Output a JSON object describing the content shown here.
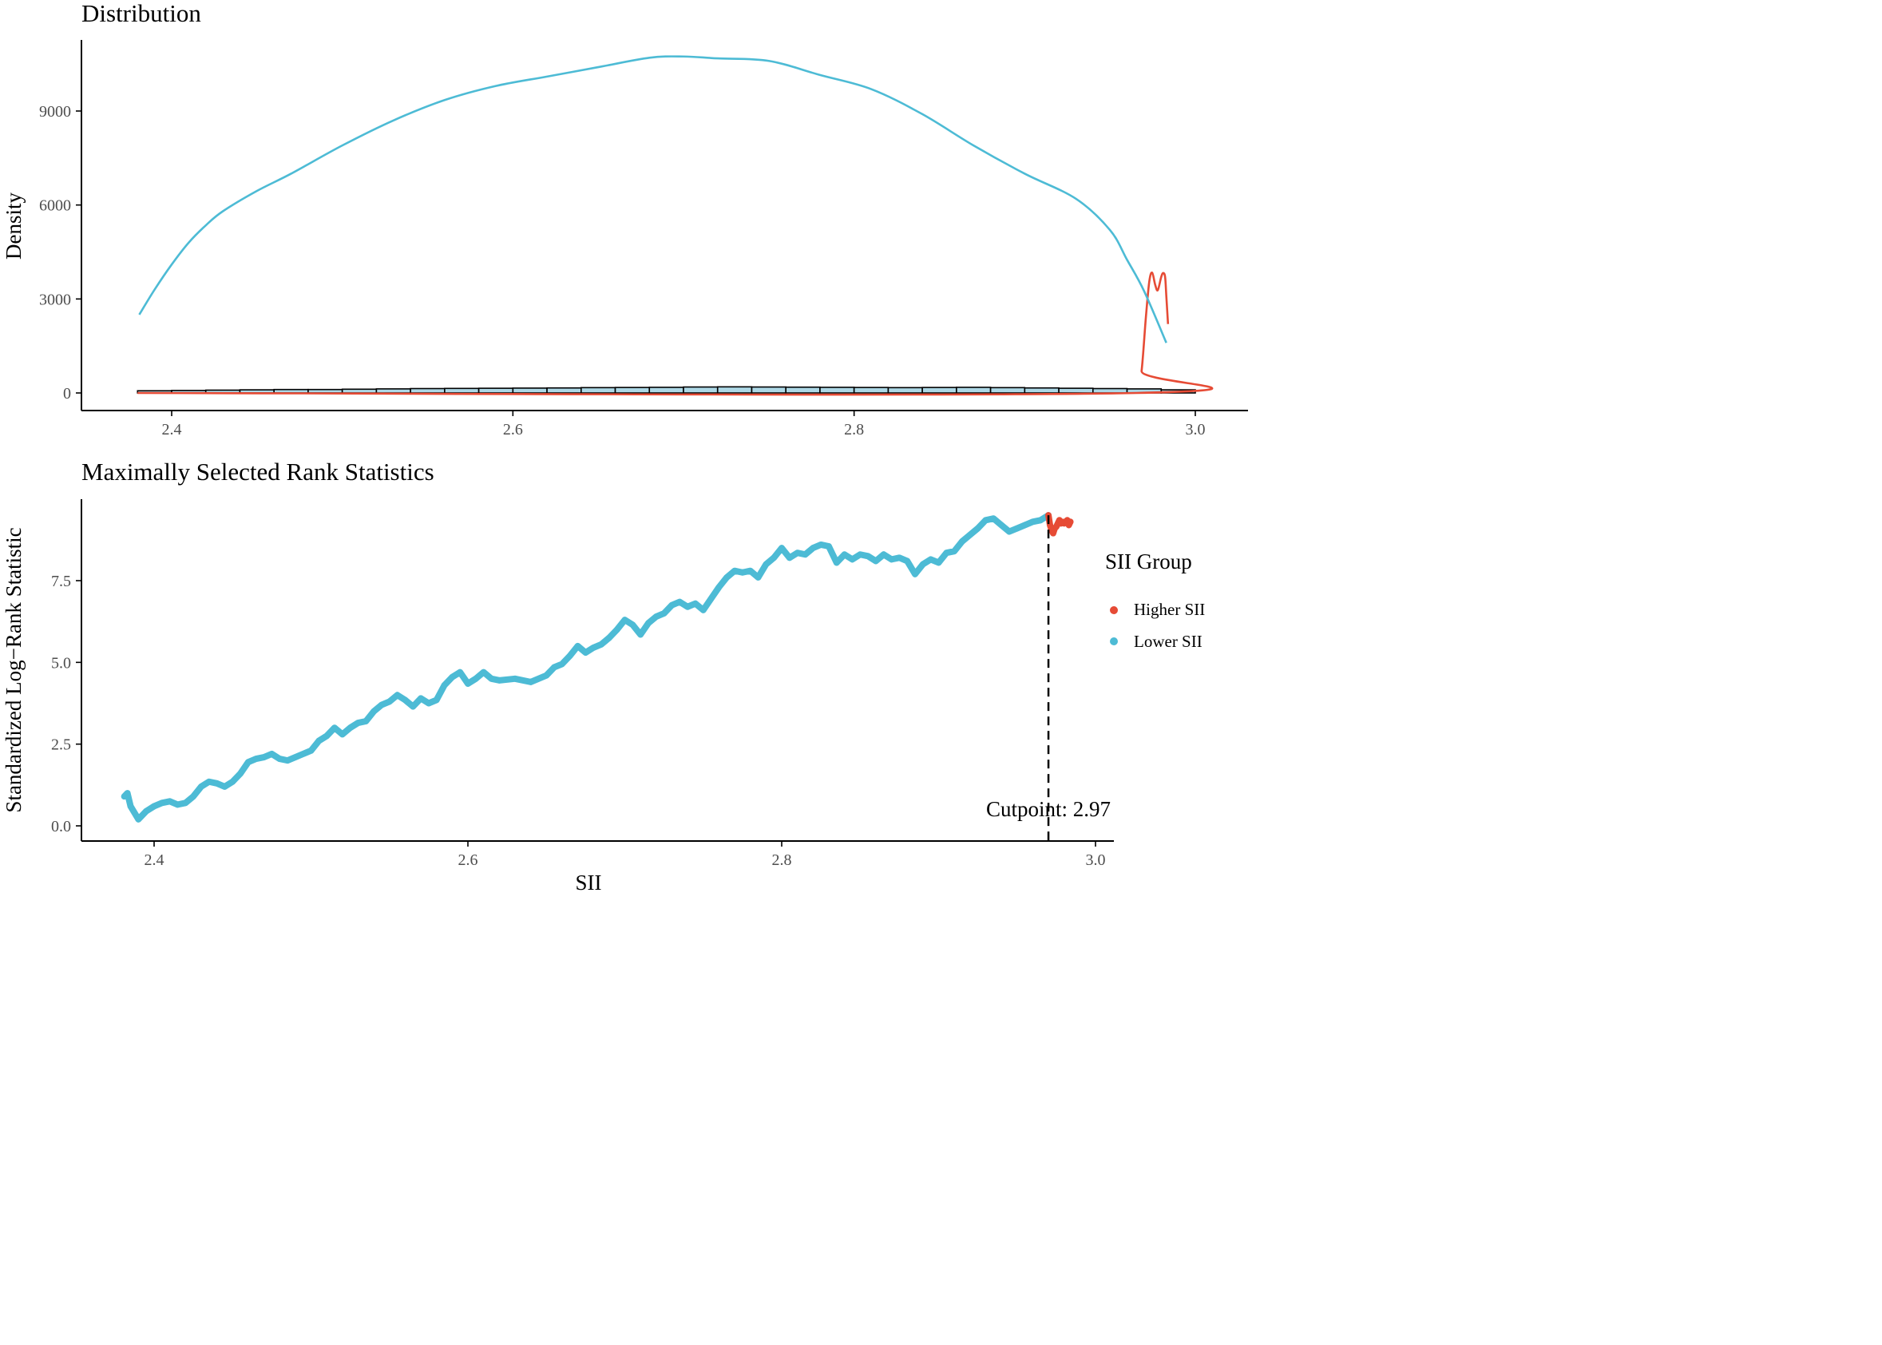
{
  "colors": {
    "higher": "#E64B35",
    "lower": "#4DBBD5",
    "hist_fill": "#ADD8E6",
    "axis": "#000000"
  },
  "chart_data": [
    {
      "type": "area",
      "title": "Distribution",
      "xlabel": "",
      "ylabel": "Density",
      "xlim": [
        2.38,
        3.0
      ],
      "ylim": [
        0,
        10800
      ],
      "xticks": [
        "2.4",
        "2.6",
        "2.8",
        "3.0"
      ],
      "yticks": [
        "0",
        "3000",
        "6000",
        "9000"
      ],
      "grid": false,
      "histogram": {
        "bin_start": 2.38,
        "bin_width": 0.02,
        "counts": [
          70,
          80,
          90,
          100,
          110,
          110,
          120,
          130,
          140,
          145,
          150,
          155,
          160,
          170,
          175,
          180,
          190,
          195,
          190,
          185,
          180,
          175,
          170,
          175,
          180,
          170,
          160,
          150,
          140,
          130,
          100
        ]
      },
      "series": [
        {
          "name": "Lower SII",
          "color": "#4DBBD5",
          "points": [
            [
              2.381,
              2500
            ],
            [
              2.39,
              3300
            ],
            [
              2.4,
              4100
            ],
            [
              2.41,
              4800
            ],
            [
              2.42,
              5350
            ],
            [
              2.43,
              5800
            ],
            [
              2.45,
              6450
            ],
            [
              2.47,
              7000
            ],
            [
              2.5,
              7900
            ],
            [
              2.53,
              8700
            ],
            [
              2.56,
              9350
            ],
            [
              2.59,
              9800
            ],
            [
              2.62,
              10100
            ],
            [
              2.65,
              10400
            ],
            [
              2.68,
              10700
            ],
            [
              2.7,
              10740
            ],
            [
              2.72,
              10680
            ],
            [
              2.75,
              10600
            ],
            [
              2.78,
              10150
            ],
            [
              2.81,
              9700
            ],
            [
              2.84,
              8900
            ],
            [
              2.87,
              7900
            ],
            [
              2.9,
              7000
            ],
            [
              2.93,
              6200
            ],
            [
              2.95,
              5200
            ],
            [
              2.96,
              4250
            ],
            [
              2.97,
              3250
            ],
            [
              2.983,
              1600
            ]
          ]
        },
        {
          "name": "Higher SII",
          "color": "#E64B35",
          "points": [
            [
              2.38,
              0
            ],
            [
              2.9658,
              0
            ],
            [
              2.9685,
              700
            ],
            [
              2.971,
              2400
            ],
            [
              2.973,
              3550
            ],
            [
              2.9747,
              3840
            ],
            [
              2.9765,
              3450
            ],
            [
              2.978,
              3280
            ],
            [
              2.98,
              3700
            ],
            [
              2.9812,
              3830
            ],
            [
              2.9823,
              3700
            ],
            [
              2.983,
              3100
            ],
            [
              2.984,
              2200
            ]
          ]
        }
      ]
    },
    {
      "type": "scatter",
      "title": "Maximally Selected Rank Statistics",
      "xlabel": "SII",
      "ylabel": "Standardized Log−Rank Statistic",
      "xlim": [
        2.38,
        3.0
      ],
      "ylim": [
        0,
        9.6
      ],
      "xticks": [
        "2.4",
        "2.6",
        "2.8",
        "3.0"
      ],
      "yticks": [
        "0.0",
        "2.5",
        "5.0",
        "7.5"
      ],
      "grid": false,
      "legend": {
        "title": "SII Group",
        "position": "right",
        "entries": [
          "Higher SII",
          "Lower SII"
        ]
      },
      "cutpoint": 2.97,
      "cutpoint_label": "Cutpoint: 2.97",
      "series": [
        {
          "name": "Lower SII",
          "color": "#4DBBD5",
          "points": [
            [
              2.381,
              0.9
            ],
            [
              2.383,
              1.0
            ],
            [
              2.385,
              0.6
            ],
            [
              2.39,
              0.2
            ],
            [
              2.395,
              0.45
            ],
            [
              2.4,
              0.6
            ],
            [
              2.405,
              0.7
            ],
            [
              2.41,
              0.75
            ],
            [
              2.415,
              0.65
            ],
            [
              2.42,
              0.7
            ],
            [
              2.425,
              0.9
            ],
            [
              2.43,
              1.2
            ],
            [
              2.435,
              1.35
            ],
            [
              2.44,
              1.3
            ],
            [
              2.445,
              1.2
            ],
            [
              2.45,
              1.35
            ],
            [
              2.455,
              1.6
            ],
            [
              2.46,
              1.95
            ],
            [
              2.465,
              2.05
            ],
            [
              2.47,
              2.1
            ],
            [
              2.475,
              2.2
            ],
            [
              2.48,
              2.05
            ],
            [
              2.485,
              2.0
            ],
            [
              2.49,
              2.1
            ],
            [
              2.5,
              2.3
            ],
            [
              2.505,
              2.6
            ],
            [
              2.51,
              2.75
            ],
            [
              2.515,
              3.0
            ],
            [
              2.52,
              2.8
            ],
            [
              2.525,
              3.0
            ],
            [
              2.53,
              3.15
            ],
            [
              2.535,
              3.2
            ],
            [
              2.54,
              3.5
            ],
            [
              2.545,
              3.7
            ],
            [
              2.55,
              3.8
            ],
            [
              2.555,
              4.0
            ],
            [
              2.56,
              3.85
            ],
            [
              2.565,
              3.65
            ],
            [
              2.57,
              3.9
            ],
            [
              2.575,
              3.75
            ],
            [
              2.58,
              3.85
            ],
            [
              2.585,
              4.3
            ],
            [
              2.59,
              4.55
            ],
            [
              2.595,
              4.7
            ],
            [
              2.6,
              4.35
            ],
            [
              2.605,
              4.5
            ],
            [
              2.61,
              4.7
            ],
            [
              2.615,
              4.5
            ],
            [
              2.62,
              4.45
            ],
            [
              2.63,
              4.5
            ],
            [
              2.64,
              4.4
            ],
            [
              2.65,
              4.6
            ],
            [
              2.655,
              4.85
            ],
            [
              2.66,
              4.95
            ],
            [
              2.665,
              5.2
            ],
            [
              2.67,
              5.5
            ],
            [
              2.675,
              5.3
            ],
            [
              2.68,
              5.45
            ],
            [
              2.685,
              5.55
            ],
            [
              2.69,
              5.75
            ],
            [
              2.695,
              6.0
            ],
            [
              2.7,
              6.3
            ],
            [
              2.705,
              6.15
            ],
            [
              2.71,
              5.85
            ],
            [
              2.715,
              6.2
            ],
            [
              2.72,
              6.4
            ],
            [
              2.725,
              6.5
            ],
            [
              2.73,
              6.75
            ],
            [
              2.735,
              6.85
            ],
            [
              2.74,
              6.7
            ],
            [
              2.745,
              6.8
            ],
            [
              2.75,
              6.6
            ],
            [
              2.755,
              6.95
            ],
            [
              2.76,
              7.3
            ],
            [
              2.765,
              7.6
            ],
            [
              2.77,
              7.8
            ],
            [
              2.775,
              7.75
            ],
            [
              2.78,
              7.8
            ],
            [
              2.785,
              7.6
            ],
            [
              2.79,
              8.0
            ],
            [
              2.795,
              8.2
            ],
            [
              2.8,
              8.5
            ],
            [
              2.805,
              8.2
            ],
            [
              2.81,
              8.35
            ],
            [
              2.815,
              8.3
            ],
            [
              2.82,
              8.5
            ],
            [
              2.825,
              8.6
            ],
            [
              2.83,
              8.55
            ],
            [
              2.835,
              8.05
            ],
            [
              2.84,
              8.3
            ],
            [
              2.845,
              8.15
            ],
            [
              2.85,
              8.3
            ],
            [
              2.855,
              8.25
            ],
            [
              2.86,
              8.1
            ],
            [
              2.865,
              8.3
            ],
            [
              2.87,
              8.15
            ],
            [
              2.875,
              8.2
            ],
            [
              2.88,
              8.1
            ],
            [
              2.885,
              7.7
            ],
            [
              2.89,
              8.0
            ],
            [
              2.895,
              8.15
            ],
            [
              2.9,
              8.05
            ],
            [
              2.905,
              8.35
            ],
            [
              2.91,
              8.4
            ],
            [
              2.915,
              8.7
            ],
            [
              2.92,
              8.9
            ],
            [
              2.925,
              9.1
            ],
            [
              2.93,
              9.35
            ],
            [
              2.935,
              9.4
            ],
            [
              2.94,
              9.2
            ],
            [
              2.945,
              9.0
            ],
            [
              2.95,
              9.1
            ],
            [
              2.955,
              9.2
            ],
            [
              2.96,
              9.3
            ],
            [
              2.965,
              9.35
            ],
            [
              2.97,
              9.5
            ]
          ]
        },
        {
          "name": "Higher SII",
          "color": "#E64B35",
          "points": [
            [
              2.97,
              9.5
            ],
            [
              2.971,
              9.2
            ],
            [
              2.972,
              9.05
            ],
            [
              2.973,
              8.95
            ],
            [
              2.974,
              9.1
            ],
            [
              2.975,
              9.15
            ],
            [
              2.976,
              9.25
            ],
            [
              2.977,
              9.35
            ],
            [
              2.978,
              9.25
            ],
            [
              2.979,
              9.3
            ],
            [
              2.98,
              9.25
            ],
            [
              2.981,
              9.3
            ],
            [
              2.982,
              9.35
            ],
            [
              2.983,
              9.2
            ],
            [
              2.984,
              9.3
            ]
          ]
        }
      ]
    }
  ]
}
